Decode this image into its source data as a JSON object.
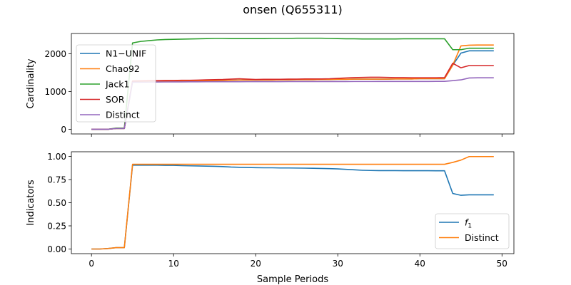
{
  "figure_title": "onsen (Q655311)",
  "chart_data": [
    {
      "type": "line",
      "ylabel": "Cardinality",
      "xlabel": "",
      "xlim": [
        -2.45,
        51.45
      ],
      "ylim": [
        -124,
        2540
      ],
      "xticks": [
        0,
        10,
        20,
        30,
        40,
        50
      ],
      "yticks": [
        0,
        1000,
        2000
      ],
      "xtick_labels_visible": false,
      "legend": "upper-left",
      "x": [
        0,
        1,
        2,
        3,
        4,
        5,
        6,
        7,
        8,
        9,
        10,
        11,
        12,
        13,
        14,
        15,
        16,
        17,
        18,
        19,
        20,
        21,
        22,
        23,
        24,
        25,
        26,
        27,
        28,
        29,
        30,
        31,
        32,
        33,
        34,
        35,
        36,
        37,
        38,
        39,
        40,
        41,
        42,
        43,
        44,
        45,
        46,
        47,
        48,
        49
      ],
      "series": [
        {
          "name": "N1−UNIF",
          "color": "#1f77b4",
          "values": [
            0,
            0,
            0,
            20,
            20,
            1270,
            1270,
            1275,
            1275,
            1278,
            1280,
            1282,
            1285,
            1287,
            1290,
            1292,
            1295,
            1300,
            1305,
            1305,
            1305,
            1305,
            1305,
            1310,
            1310,
            1315,
            1315,
            1315,
            1320,
            1320,
            1325,
            1325,
            1330,
            1330,
            1330,
            1330,
            1330,
            1335,
            1335,
            1335,
            1340,
            1340,
            1340,
            1340,
            1700,
            2020,
            2080,
            2080,
            2080,
            2080
          ]
        },
        {
          "name": "Chao92",
          "color": "#ff7f0e",
          "values": [
            0,
            0,
            0,
            20,
            20,
            1270,
            1270,
            1275,
            1275,
            1278,
            1280,
            1282,
            1285,
            1287,
            1290,
            1292,
            1295,
            1300,
            1305,
            1305,
            1305,
            1305,
            1305,
            1310,
            1310,
            1315,
            1315,
            1315,
            1320,
            1320,
            1325,
            1325,
            1330,
            1330,
            1330,
            1330,
            1330,
            1335,
            1335,
            1335,
            1340,
            1340,
            1340,
            1340,
            1700,
            2210,
            2230,
            2235,
            2235,
            2235
          ]
        },
        {
          "name": "Jack1",
          "color": "#2ca02c",
          "values": [
            0,
            0,
            0,
            30,
            30,
            2290,
            2330,
            2350,
            2370,
            2380,
            2385,
            2390,
            2395,
            2400,
            2405,
            2410,
            2410,
            2405,
            2405,
            2405,
            2405,
            2405,
            2410,
            2410,
            2410,
            2415,
            2415,
            2415,
            2415,
            2410,
            2405,
            2400,
            2400,
            2395,
            2395,
            2395,
            2395,
            2395,
            2400,
            2400,
            2400,
            2400,
            2400,
            2400,
            2110,
            2110,
            2150,
            2150,
            2150,
            2150
          ]
        },
        {
          "name": "SOR",
          "color": "#d62728",
          "values": [
            0,
            0,
            0,
            20,
            20,
            1280,
            1285,
            1290,
            1290,
            1295,
            1295,
            1300,
            1300,
            1305,
            1310,
            1315,
            1320,
            1330,
            1340,
            1330,
            1320,
            1325,
            1325,
            1325,
            1330,
            1330,
            1335,
            1335,
            1335,
            1340,
            1350,
            1360,
            1370,
            1375,
            1380,
            1380,
            1375,
            1370,
            1370,
            1365,
            1365,
            1365,
            1365,
            1370,
            1750,
            1630,
            1690,
            1690,
            1690,
            1690
          ]
        },
        {
          "name": "Distinct",
          "color": "#9467bd",
          "values": [
            0,
            0,
            0,
            20,
            20,
            1250,
            1250,
            1252,
            1254,
            1255,
            1256,
            1257,
            1258,
            1259,
            1260,
            1260,
            1261,
            1262,
            1262,
            1263,
            1263,
            1264,
            1264,
            1264,
            1265,
            1265,
            1265,
            1265,
            1266,
            1266,
            1266,
            1266,
            1267,
            1267,
            1267,
            1268,
            1268,
            1268,
            1268,
            1269,
            1269,
            1269,
            1270,
            1270,
            1290,
            1310,
            1360,
            1365,
            1365,
            1365
          ]
        }
      ]
    },
    {
      "type": "line",
      "ylabel": "Indicators",
      "xlabel": "Sample Periods",
      "xlim": [
        -2.45,
        51.45
      ],
      "ylim": [
        -0.05,
        1.05
      ],
      "xticks": [
        0,
        10,
        20,
        30,
        40,
        50
      ],
      "yticks": [
        0.0,
        0.25,
        0.5,
        0.75,
        1.0
      ],
      "ytick_labels": [
        "0.00",
        "0.25",
        "0.50",
        "0.75",
        "1.00"
      ],
      "legend": "lower-right",
      "x": [
        0,
        1,
        2,
        3,
        4,
        5,
        6,
        7,
        8,
        9,
        10,
        11,
        12,
        13,
        14,
        15,
        16,
        17,
        18,
        19,
        20,
        21,
        22,
        23,
        24,
        25,
        26,
        27,
        28,
        29,
        30,
        31,
        32,
        33,
        34,
        35,
        36,
        37,
        38,
        39,
        40,
        41,
        42,
        43,
        44,
        45,
        46,
        47,
        48,
        49
      ],
      "series": [
        {
          "name": "f",
          "name_subscript": "1",
          "color": "#1f77b4",
          "values": [
            0,
            0,
            0.005,
            0.015,
            0.015,
            0.905,
            0.905,
            0.905,
            0.905,
            0.903,
            0.903,
            0.9,
            0.898,
            0.897,
            0.895,
            0.893,
            0.89,
            0.885,
            0.882,
            0.88,
            0.878,
            0.877,
            0.877,
            0.875,
            0.875,
            0.874,
            0.873,
            0.872,
            0.87,
            0.868,
            0.865,
            0.86,
            0.855,
            0.85,
            0.848,
            0.847,
            0.847,
            0.847,
            0.846,
            0.846,
            0.846,
            0.846,
            0.845,
            0.845,
            0.6,
            0.58,
            0.585,
            0.585,
            0.585,
            0.585
          ]
        },
        {
          "name": "Distinct",
          "color": "#ff7f0e",
          "values": [
            0,
            0,
            0.005,
            0.015,
            0.015,
            0.915,
            0.915,
            0.915,
            0.915,
            0.915,
            0.915,
            0.915,
            0.915,
            0.915,
            0.915,
            0.915,
            0.915,
            0.915,
            0.915,
            0.915,
            0.915,
            0.915,
            0.915,
            0.915,
            0.915,
            0.915,
            0.915,
            0.915,
            0.915,
            0.915,
            0.915,
            0.915,
            0.915,
            0.915,
            0.915,
            0.915,
            0.915,
            0.915,
            0.915,
            0.915,
            0.915,
            0.915,
            0.915,
            0.915,
            0.935,
            0.96,
            0.998,
            0.998,
            0.998,
            0.998
          ]
        }
      ]
    }
  ]
}
